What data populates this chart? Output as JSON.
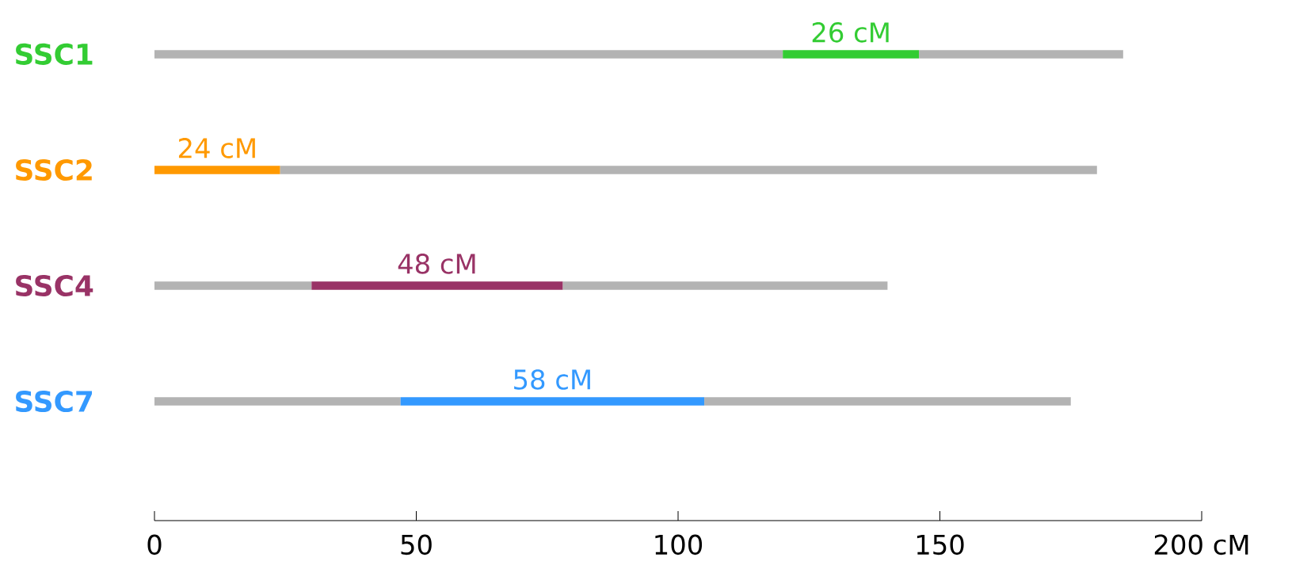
{
  "chart_data": {
    "type": "bar",
    "orientation": "horizontal",
    "stacked": true,
    "categories": [
      "SSC1",
      "SSC2",
      "SSC4",
      "SSC7"
    ],
    "xlim": [
      0,
      200
    ],
    "xticks": [
      0,
      50,
      100,
      150,
      {
        "value": 200,
        "label": "200 cM"
      }
    ],
    "series": [
      {
        "color": "#b3b3b3",
        "values": [
          120,
          0,
          30,
          47
        ]
      },
      {
        "colors": [
          "#33cc33",
          "#ff9900",
          "#993366",
          "#3399ff"
        ],
        "values": [
          26,
          24,
          48,
          58
        ],
        "value_labels": [
          "26 cM",
          "24 cM",
          "48 cM",
          "58 cM"
        ]
      },
      {
        "color": "#b3b3b3",
        "values": [
          39,
          156,
          62,
          70
        ]
      }
    ]
  }
}
